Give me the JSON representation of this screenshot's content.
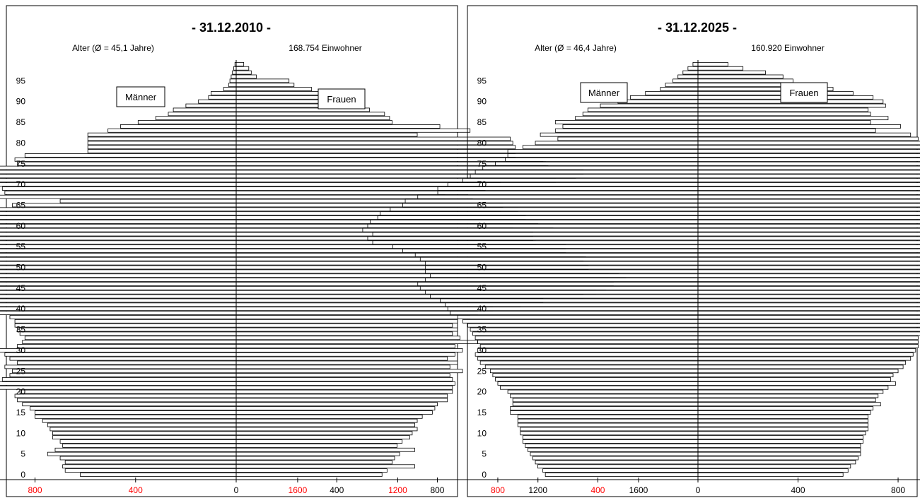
{
  "colors": {
    "male_tick_label": "#ff0000",
    "female_tick_label": "#000000",
    "bar_fill": "#ffffff",
    "bar_stroke": "#000000",
    "frame": "#000000"
  },
  "chart_data": [
    {
      "type": "bar",
      "orientation": "horizontal-pyramid",
      "title": "- 31.12.2010 -",
      "subtitle_left": "Alter (Ø = 45,1 Jahre)",
      "subtitle_right": "168.754 Einwohner",
      "legend": {
        "left": "Männer",
        "right": "Frauen"
      },
      "y_ticks": [
        "0",
        "5",
        "10",
        "15",
        "20",
        "25",
        "30",
        "35",
        "40",
        "45",
        "50",
        "55",
        "60",
        "65",
        "70",
        "75",
        "80",
        "85",
        "90",
        "95"
      ],
      "x_ticks_left": [
        "1600",
        "1200",
        "800",
        "400"
      ],
      "x_ticks_right": [
        "0",
        "400",
        "800",
        "1200",
        "1600"
      ],
      "xlim": [
        -1600,
        1600
      ],
      "ylim": [
        0,
        99
      ],
      "ages": [
        0,
        1,
        2,
        3,
        4,
        5,
        6,
        7,
        8,
        9,
        10,
        11,
        12,
        13,
        14,
        15,
        16,
        17,
        18,
        19,
        20,
        21,
        22,
        23,
        24,
        25,
        26,
        27,
        28,
        29,
        30,
        31,
        32,
        33,
        34,
        35,
        36,
        37,
        38,
        39,
        40,
        41,
        42,
        43,
        44,
        45,
        46,
        47,
        48,
        49,
        50,
        51,
        52,
        53,
        54,
        55,
        56,
        57,
        58,
        59,
        60,
        61,
        62,
        63,
        64,
        65,
        66,
        67,
        68,
        69,
        70,
        71,
        72,
        73,
        74,
        75,
        76,
        77,
        78,
        79,
        80,
        81,
        82,
        83,
        84,
        85,
        86,
        87,
        88,
        89,
        90,
        91,
        92,
        93,
        94,
        95,
        96,
        97,
        98,
        99
      ],
      "series": [
        {
          "name": "Männer",
          "values": [
            620,
            680,
            690,
            680,
            700,
            750,
            720,
            690,
            700,
            730,
            730,
            740,
            750,
            770,
            800,
            800,
            820,
            850,
            870,
            880,
            860,
            970,
            950,
            930,
            900,
            890,
            920,
            870,
            900,
            920,
            950,
            870,
            850,
            840,
            860,
            870,
            880,
            880,
            900,
            970,
            1120,
            1200,
            1380,
            1440,
            1470,
            1480,
            1500,
            1490,
            1470,
            1450,
            1400,
            1350,
            1300,
            1270,
            1230,
            1140,
            1110,
            1130,
            1150,
            1160,
            1150,
            1050,
            1040,
            980,
            950,
            890,
            700,
            1000,
            920,
            930,
            1100,
            1160,
            1110,
            1010,
            960,
            870,
            880,
            840,
            590,
            590,
            590,
            590,
            590,
            510,
            460,
            390,
            320,
            270,
            250,
            200,
            150,
            110,
            100,
            50,
            30,
            25,
            20,
            15,
            10,
            5
          ]
        },
        {
          "name": "Frauen",
          "values": [
            580,
            600,
            710,
            620,
            630,
            650,
            710,
            640,
            660,
            690,
            700,
            720,
            710,
            720,
            740,
            780,
            790,
            800,
            840,
            840,
            860,
            860,
            870,
            860,
            850,
            900,
            850,
            880,
            840,
            870,
            900,
            870,
            960,
            890,
            860,
            880,
            860,
            880,
            930,
            960,
            1020,
            1130,
            1220,
            1380,
            1430,
            1470,
            1500,
            1550,
            1480,
            1520,
            1400,
            1380,
            1380,
            1390,
            1310,
            1310,
            1190,
            1180,
            1180,
            1260,
            1100,
            1200,
            1150,
            1050,
            1120,
            1060,
            940,
            830,
            920,
            990,
            1050,
            1270,
            1350,
            1380,
            1240,
            1230,
            1220,
            1110,
            1110,
            1110,
            1100,
            1090,
            720,
            930,
            810,
            620,
            610,
            590,
            530,
            500,
            460,
            430,
            380,
            300,
            230,
            210,
            80,
            60,
            50,
            30
          ]
        }
      ]
    },
    {
      "type": "bar",
      "orientation": "horizontal-pyramid",
      "title": "- 31.12.2025 -",
      "subtitle_left": "Alter (Ø = 46,4 Jahre)",
      "subtitle_right": "160.920 Einwohner",
      "legend": {
        "left": "Männer",
        "right": "Frauen"
      },
      "y_ticks": [
        "0",
        "5",
        "10",
        "15",
        "20",
        "25",
        "30",
        "35",
        "40",
        "45",
        "50",
        "55",
        "60",
        "65",
        "70",
        "75",
        "80",
        "85",
        "90",
        "95"
      ],
      "x_ticks_left": [
        "1600",
        "1200",
        "800",
        "400"
      ],
      "x_ticks_right": [
        "0",
        "400",
        "800",
        "1200",
        "1600"
      ],
      "xlim": [
        -1600,
        1600
      ],
      "ylim": [
        0,
        99
      ],
      "ages": [
        0,
        1,
        2,
        3,
        4,
        5,
        6,
        7,
        8,
        9,
        10,
        11,
        12,
        13,
        14,
        15,
        16,
        17,
        18,
        19,
        20,
        21,
        22,
        23,
        24,
        25,
        26,
        27,
        28,
        29,
        30,
        31,
        32,
        33,
        34,
        35,
        36,
        37,
        38,
        39,
        40,
        41,
        42,
        43,
        44,
        45,
        46,
        47,
        48,
        49,
        50,
        51,
        52,
        53,
        54,
        55,
        56,
        57,
        58,
        59,
        60,
        61,
        62,
        63,
        64,
        65,
        66,
        67,
        68,
        69,
        70,
        71,
        72,
        73,
        74,
        75,
        76,
        77,
        78,
        79,
        80,
        81,
        82,
        83,
        84,
        85,
        86,
        87,
        88,
        89,
        90,
        91,
        92,
        93,
        94,
        95,
        96,
        97,
        98,
        99
      ],
      "series": [
        {
          "name": "Männer",
          "values": [
            610,
            620,
            640,
            650,
            660,
            670,
            680,
            690,
            700,
            700,
            710,
            710,
            720,
            720,
            720,
            750,
            750,
            740,
            740,
            750,
            760,
            790,
            800,
            810,
            820,
            830,
            850,
            870,
            880,
            890,
            880,
            870,
            880,
            890,
            900,
            910,
            920,
            940,
            960,
            990,
            1000,
            1010,
            1030,
            1070,
            1090,
            1110,
            1120,
            1090,
            1070,
            1090,
            1090,
            1090,
            1110,
            1130,
            1180,
            1220,
            1300,
            1320,
            1300,
            1340,
            1320,
            1310,
            1280,
            1270,
            1230,
            1180,
            1170,
            1120,
            1040,
            1040,
            1000,
            940,
            910,
            890,
            860,
            810,
            770,
            760,
            760,
            700,
            650,
            560,
            630,
            570,
            540,
            570,
            490,
            460,
            440,
            390,
            320,
            270,
            210,
            150,
            130,
            100,
            80,
            60,
            40,
            20
          ]
        },
        {
          "name": "Frauen",
          "values": [
            580,
            600,
            610,
            630,
            640,
            650,
            650,
            650,
            660,
            660,
            670,
            680,
            680,
            680,
            680,
            690,
            700,
            730,
            710,
            720,
            740,
            760,
            790,
            770,
            780,
            800,
            820,
            830,
            850,
            860,
            870,
            880,
            880,
            880,
            890,
            900,
            910,
            930,
            950,
            970,
            990,
            1000,
            1020,
            1040,
            1070,
            1060,
            1100,
            1080,
            1060,
            1090,
            1070,
            1070,
            1080,
            1100,
            1110,
            1190,
            1240,
            1300,
            1350,
            1370,
            1420,
            1360,
            1340,
            1350,
            1270,
            1230,
            1240,
            1220,
            1220,
            1150,
            1150,
            1040,
            1050,
            1060,
            1060,
            1070,
            1030,
            1000,
            950,
            930,
            930,
            880,
            850,
            710,
            810,
            690,
            760,
            690,
            680,
            750,
            740,
            700,
            620,
            540,
            500,
            380,
            340,
            270,
            180,
            120
          ]
        }
      ]
    }
  ]
}
